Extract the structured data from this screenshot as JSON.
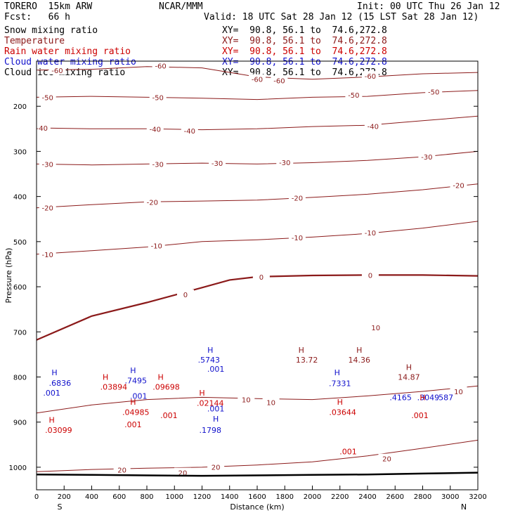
{
  "header": {
    "model": "TORERO  15km ARW",
    "center": "NCAR/MMM",
    "init": "Init: 00 UTC Thu 26 Jan 12",
    "fcst": "Fcst:   66 h",
    "valid": "Valid: 18 UTC Sat 28 Jan 12 (15 LST Sat 28 Jan 12)"
  },
  "legend": [
    {
      "label": "Snow mixing ratio",
      "xy": "XY=  90.8, 56.1 to  74.6,272.8",
      "color": "#000000"
    },
    {
      "label": "Temperature",
      "xy": "XY=  90.8, 56.1 to  74.6,272.8",
      "color": "#8b1a1a"
    },
    {
      "label": "Rain water mixing ratio",
      "xy": "XY=  90.8, 56.1 to  74.6,272.8",
      "color": "#cc0000"
    },
    {
      "label": "Cloud water mixing ratio",
      "xy": "XY=  90.8, 56.1 to  74.6,272.8",
      "color": "#1010cc"
    },
    {
      "label": "Cloud ice mixing ratio",
      "xy": "XY=  90.8, 56.1 to  74.6,272.8",
      "color": "#000000"
    }
  ],
  "chart_data": {
    "type": "line",
    "xlabel": "Distance (km)",
    "ylabel": "Pressure (hPa)",
    "xlim": [
      0,
      3200
    ],
    "ylim": [
      1050,
      100
    ],
    "x_ticks": [
      0,
      200,
      400,
      600,
      800,
      1000,
      1200,
      1400,
      1600,
      1800,
      2000,
      2200,
      2400,
      2600,
      2800,
      3000,
      3200
    ],
    "y_ticks": [
      200,
      300,
      400,
      500,
      600,
      700,
      800,
      900,
      1000
    ],
    "x_end_labels": {
      "left": "S",
      "right": "N"
    },
    "temperature_isotherms": [
      {
        "value": -60,
        "x": [
          0,
          400,
          800,
          1200,
          1600,
          2000,
          2400,
          2800,
          3200
        ],
        "y": [
          120,
          118,
          112,
          115,
          135,
          140,
          135,
          128,
          125
        ],
        "labels": [
          {
            "text": "-60",
            "x": 150,
            "y": 120
          },
          {
            "text": "-60",
            "x": 900,
            "y": 110
          },
          {
            "text": "-60",
            "x": 1600,
            "y": 140
          },
          {
            "text": "-60",
            "x": 1760,
            "y": 143
          },
          {
            "text": "-60",
            "x": 2420,
            "y": 133
          }
        ]
      },
      {
        "value": -50,
        "x": [
          0,
          400,
          800,
          1200,
          1600,
          2000,
          2400,
          2800,
          3200
        ],
        "y": [
          180,
          178,
          180,
          182,
          185,
          180,
          178,
          170,
          165
        ],
        "labels": [
          {
            "text": "-50",
            "x": 80,
            "y": 180
          },
          {
            "text": "-50",
            "x": 880,
            "y": 180
          },
          {
            "text": "-50",
            "x": 2300,
            "y": 175
          },
          {
            "text": "-50",
            "x": 2880,
            "y": 168
          }
        ]
      },
      {
        "value": -40,
        "x": [
          0,
          400,
          800,
          1200,
          1600,
          2000,
          2400,
          2800,
          3200
        ],
        "y": [
          248,
          250,
          250,
          252,
          250,
          245,
          242,
          232,
          222
        ],
        "labels": [
          {
            "text": "-40",
            "x": 40,
            "y": 248
          },
          {
            "text": "-40",
            "x": 860,
            "y": 250
          },
          {
            "text": "-40",
            "x": 1110,
            "y": 254
          },
          {
            "text": "-40",
            "x": 2440,
            "y": 244
          }
        ]
      },
      {
        "value": -30,
        "x": [
          0,
          400,
          800,
          1200,
          1600,
          2000,
          2400,
          2800,
          3200
        ],
        "y": [
          328,
          330,
          328,
          326,
          328,
          325,
          320,
          312,
          300
        ],
        "labels": [
          {
            "text": "-30",
            "x": 80,
            "y": 328
          },
          {
            "text": "-30",
            "x": 880,
            "y": 328
          },
          {
            "text": "-30",
            "x": 1310,
            "y": 326
          },
          {
            "text": "-30",
            "x": 1800,
            "y": 324
          },
          {
            "text": "-30",
            "x": 2830,
            "y": 312
          }
        ]
      },
      {
        "value": -20,
        "x": [
          0,
          400,
          800,
          1200,
          1600,
          2000,
          2400,
          2800,
          3200
        ],
        "y": [
          425,
          418,
          412,
          410,
          408,
          402,
          395,
          385,
          372
        ],
        "labels": [
          {
            "text": "-20",
            "x": 80,
            "y": 425
          },
          {
            "text": "-20",
            "x": 840,
            "y": 412
          },
          {
            "text": "-20",
            "x": 1890,
            "y": 403
          },
          {
            "text": "-20",
            "x": 3060,
            "y": 375
          }
        ]
      },
      {
        "value": -10,
        "x": [
          0,
          400,
          800,
          1200,
          1600,
          2000,
          2400,
          2800,
          3200
        ],
        "y": [
          528,
          520,
          512,
          500,
          496,
          490,
          482,
          470,
          455
        ],
        "labels": [
          {
            "text": "-10",
            "x": 80,
            "y": 528
          },
          {
            "text": "-10",
            "x": 870,
            "y": 509
          },
          {
            "text": "-10",
            "x": 1890,
            "y": 491
          },
          {
            "text": "-10",
            "x": 2420,
            "y": 480
          }
        ]
      },
      {
        "value": 0,
        "x": [
          0,
          400,
          800,
          1200,
          1400,
          1600,
          2000,
          2400,
          2800,
          3200
        ],
        "y": [
          718,
          665,
          635,
          602,
          585,
          578,
          575,
          574,
          574,
          576
        ],
        "labels": [
          {
            "text": "0",
            "x": 1080,
            "y": 617
          },
          {
            "text": "0",
            "x": 1630,
            "y": 578
          },
          {
            "text": "0",
            "x": 2420,
            "y": 574
          }
        ]
      },
      {
        "value": 10,
        "x": [
          0,
          400,
          800,
          1200,
          1600,
          2000,
          2400,
          2800,
          3200
        ],
        "y": [
          880,
          862,
          850,
          845,
          848,
          850,
          842,
          832,
          820
        ],
        "labels": [
          {
            "text": "10",
            "x": 1520,
            "y": 850
          },
          {
            "text": "10",
            "x": 1700,
            "y": 856
          },
          {
            "text": "10",
            "x": 2460,
            "y": 690
          },
          {
            "text": "10",
            "x": 3060,
            "y": 832
          }
        ]
      },
      {
        "value": 20,
        "x": [
          0,
          400,
          800,
          1200,
          1600,
          2000,
          2400,
          2800,
          3200
        ],
        "y": [
          1010,
          1005,
          1002,
          1000,
          995,
          988,
          975,
          958,
          940
        ],
        "labels": [
          {
            "text": "20",
            "x": 620,
            "y": 1006
          },
          {
            "text": "20",
            "x": 1060,
            "y": 1012
          },
          {
            "text": "20",
            "x": 1300,
            "y": 999
          },
          {
            "text": "20",
            "x": 2540,
            "y": 981
          }
        ]
      }
    ],
    "ground_surface": {
      "x": [
        0,
        400,
        800,
        1200,
        1600,
        2000,
        2400,
        2800,
        3200
      ],
      "y": [
        1016,
        1017,
        1018,
        1019,
        1018,
        1017,
        1016,
        1014,
        1012
      ]
    },
    "annotations": [
      {
        "text": "H",
        "x": 1920,
        "y": 740,
        "color": "#8b1a1a"
      },
      {
        "text": "13.72",
        "x": 1960,
        "y": 762,
        "color": "#8b1a1a"
      },
      {
        "text": "H",
        "x": 2340,
        "y": 740,
        "color": "#8b1a1a"
      },
      {
        "text": "14.36",
        "x": 2340,
        "y": 762,
        "color": "#8b1a1a"
      },
      {
        "text": "H",
        "x": 2700,
        "y": 778,
        "color": "#8b1a1a"
      },
      {
        "text": "14.87",
        "x": 2700,
        "y": 800,
        "color": "#8b1a1a"
      },
      {
        "text": "H",
        "x": 130,
        "y": 790,
        "color": "#1010cc"
      },
      {
        "text": ".6836",
        "x": 170,
        "y": 813,
        "color": "#1010cc"
      },
      {
        "text": ".001",
        "x": 110,
        "y": 835,
        "color": "#1010cc"
      },
      {
        "text": "H",
        "x": 700,
        "y": 785,
        "color": "#1010cc"
      },
      {
        "text": ".7495",
        "x": 720,
        "y": 808,
        "color": "#1010cc"
      },
      {
        "text": ".001",
        "x": 740,
        "y": 842,
        "color": "#1010cc"
      },
      {
        "text": "H",
        "x": 1260,
        "y": 740,
        "color": "#1010cc"
      },
      {
        "text": ".5743",
        "x": 1250,
        "y": 762,
        "color": "#1010cc"
      },
      {
        "text": ".001",
        "x": 1300,
        "y": 782,
        "color": "#1010cc"
      },
      {
        "text": "H",
        "x": 2180,
        "y": 790,
        "color": "#1010cc"
      },
      {
        "text": ".7331",
        "x": 2200,
        "y": 814,
        "color": "#1010cc"
      },
      {
        "text": ".4165",
        "x": 2640,
        "y": 845,
        "color": "#1010cc"
      },
      {
        "text": ".3049",
        "x": 2840,
        "y": 845,
        "color": "#1010cc"
      },
      {
        "text": ".587",
        "x": 2960,
        "y": 845,
        "color": "#1010cc"
      },
      {
        "text": "H",
        "x": 1300,
        "y": 893,
        "color": "#1010cc"
      },
      {
        "text": ".1798",
        "x": 1260,
        "y": 918,
        "color": "#1010cc"
      },
      {
        "text": ".001",
        "x": 1300,
        "y": 870,
        "color": "#1010cc"
      },
      {
        "text": "H",
        "x": 500,
        "y": 800,
        "color": "#cc0000"
      },
      {
        "text": ".03894",
        "x": 560,
        "y": 822,
        "color": "#cc0000"
      },
      {
        "text": "H",
        "x": 900,
        "y": 800,
        "color": "#cc0000"
      },
      {
        "text": ".09698",
        "x": 940,
        "y": 822,
        "color": "#cc0000"
      },
      {
        "text": "H",
        "x": 700,
        "y": 855,
        "color": "#cc0000"
      },
      {
        "text": ".04985",
        "x": 720,
        "y": 878,
        "color": "#cc0000"
      },
      {
        "text": ".001",
        "x": 700,
        "y": 905,
        "color": "#cc0000"
      },
      {
        "text": ".001",
        "x": 960,
        "y": 885,
        "color": "#cc0000"
      },
      {
        "text": "H",
        "x": 1200,
        "y": 835,
        "color": "#cc0000"
      },
      {
        "text": ".02144",
        "x": 1260,
        "y": 858,
        "color": "#cc0000"
      },
      {
        "text": "H",
        "x": 110,
        "y": 895,
        "color": "#cc0000"
      },
      {
        "text": ".03099",
        "x": 160,
        "y": 918,
        "color": "#cc0000"
      },
      {
        "text": "H",
        "x": 2200,
        "y": 855,
        "color": "#cc0000"
      },
      {
        "text": ".03644",
        "x": 2220,
        "y": 878,
        "color": "#cc0000"
      },
      {
        "text": ".001",
        "x": 2260,
        "y": 965,
        "color": "#cc0000"
      },
      {
        "text": "H",
        "x": 2800,
        "y": 845,
        "color": "#cc0000"
      },
      {
        "text": ".001",
        "x": 2780,
        "y": 885,
        "color": "#cc0000"
      }
    ]
  }
}
